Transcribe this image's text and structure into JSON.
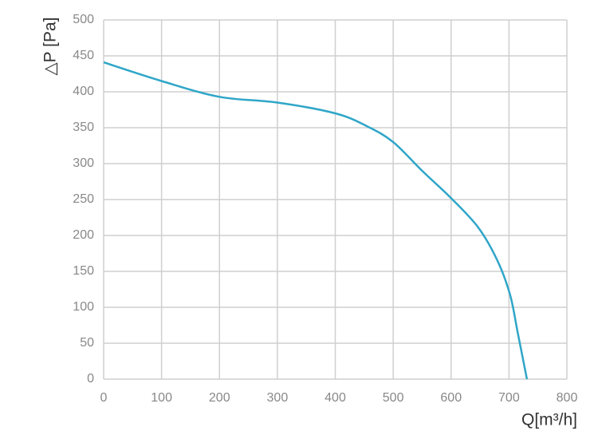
{
  "chart_data": {
    "type": "line",
    "x_label": "Q[m³/h]",
    "y_label": "△P [Pa]",
    "series": [
      {
        "color": "#2fa6c8",
        "x": [
          0,
          100,
          200,
          300,
          400,
          455,
          500,
          550,
          600,
          647,
          680,
          702,
          715,
          731
        ],
        "values": [
          441,
          415,
          393,
          385,
          370,
          352,
          330,
          290,
          252,
          211,
          165,
          117,
          65,
          0
        ]
      }
    ],
    "xlim": [
      0,
      800
    ],
    "xticks": [
      0,
      100,
      200,
      300,
      400,
      500,
      600,
      700,
      800
    ],
    "ylim": [
      0,
      500
    ],
    "yticks": [
      0,
      50,
      100,
      150,
      200,
      250,
      300,
      350,
      400,
      450,
      500
    ],
    "grid": true
  }
}
